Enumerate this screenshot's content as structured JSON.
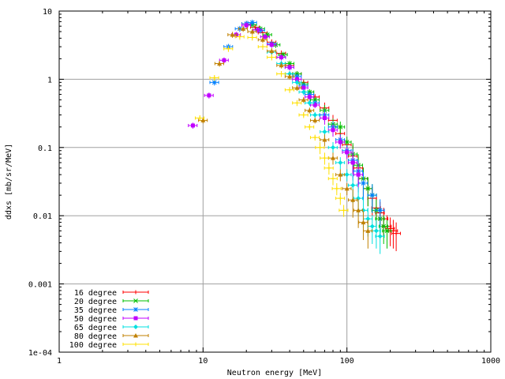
{
  "chart_data": {
    "type": "scatter",
    "xlabel": "Neutron energy [MeV]",
    "ylabel": "ddxs [mb/sr/MeV]",
    "xscale": "log",
    "yscale": "log",
    "xlim": [
      1,
      1000
    ],
    "ylim": [
      0.0001,
      10
    ],
    "xticks": [
      {
        "value": 1,
        "label": "1"
      },
      {
        "value": 10,
        "label": "10"
      },
      {
        "value": 100,
        "label": "100"
      },
      {
        "value": 1000,
        "label": "1000"
      }
    ],
    "yticks": [
      {
        "value": 0.0001,
        "label": "1e-04"
      },
      {
        "value": 0.001,
        "label": "0.001"
      },
      {
        "value": 0.01,
        "label": "0.01"
      },
      {
        "value": 0.1,
        "label": "0.1"
      },
      {
        "value": 1,
        "label": "1"
      },
      {
        "value": 10,
        "label": "10"
      }
    ],
    "grid": true,
    "legend_position": "bottom-left",
    "series": [
      {
        "name": "16 degree",
        "color": "#ff0000",
        "marker": "plus",
        "points": [
          [
            20,
            6.5
          ],
          [
            23,
            5.8
          ],
          [
            26,
            4.8
          ],
          [
            30,
            3.5
          ],
          [
            35,
            2.4
          ],
          [
            40,
            1.6
          ],
          [
            45,
            1.2
          ],
          [
            50,
            0.9
          ],
          [
            60,
            0.55
          ],
          [
            70,
            0.38
          ],
          [
            80,
            0.25
          ],
          [
            90,
            0.16
          ],
          [
            100,
            0.11
          ],
          [
            110,
            0.075
          ],
          [
            120,
            0.05
          ],
          [
            130,
            0.035
          ],
          [
            140,
            0.025
          ],
          [
            150,
            0.018
          ],
          [
            160,
            0.013
          ],
          [
            170,
            0.011
          ],
          [
            180,
            0.009
          ],
          [
            190,
            0.007
          ],
          [
            200,
            0.0065
          ],
          [
            210,
            0.006
          ],
          [
            220,
            0.0055
          ]
        ]
      },
      {
        "name": "20 degree",
        "color": "#00c000",
        "marker": "cross",
        "points": [
          [
            22,
            6.3
          ],
          [
            25,
            5.5
          ],
          [
            28,
            4.5
          ],
          [
            32,
            3.2
          ],
          [
            36,
            2.3
          ],
          [
            40,
            1.7
          ],
          [
            45,
            1.2
          ],
          [
            50,
            0.85
          ],
          [
            55,
            0.65
          ],
          [
            60,
            0.5
          ],
          [
            70,
            0.35
          ],
          [
            80,
            0.22
          ],
          [
            90,
            0.2
          ],
          [
            100,
            0.12
          ],
          [
            110,
            0.08
          ],
          [
            120,
            0.055
          ],
          [
            130,
            0.035
          ],
          [
            140,
            0.025
          ],
          [
            150,
            0.02
          ],
          [
            160,
            0.012
          ],
          [
            170,
            0.009
          ],
          [
            180,
            0.007
          ],
          [
            190,
            0.006
          ]
        ]
      },
      {
        "name": "35 degree",
        "color": "#0080ff",
        "marker": "star",
        "points": [
          [
            12,
            0.9
          ],
          [
            15,
            3.0
          ],
          [
            18,
            5.5
          ],
          [
            20,
            6.5
          ],
          [
            22,
            6.8
          ],
          [
            25,
            5.2
          ],
          [
            30,
            3.3
          ],
          [
            35,
            2.1
          ],
          [
            40,
            1.5
          ],
          [
            45,
            1.1
          ],
          [
            50,
            0.8
          ],
          [
            55,
            0.6
          ],
          [
            60,
            0.45
          ],
          [
            70,
            0.3
          ],
          [
            80,
            0.2
          ],
          [
            90,
            0.13
          ],
          [
            100,
            0.09
          ],
          [
            110,
            0.065
          ],
          [
            120,
            0.045
          ],
          [
            130,
            0.03
          ],
          [
            150,
            0.02
          ],
          [
            170,
            0.012
          ]
        ]
      },
      {
        "name": "50 degree",
        "color": "#c000ff",
        "marker": "square",
        "points": [
          [
            8.5,
            0.21
          ],
          [
            11,
            0.58
          ],
          [
            14,
            1.9
          ],
          [
            17,
            4.5
          ],
          [
            20,
            6.2
          ],
          [
            24,
            5.3
          ],
          [
            27,
            4.2
          ],
          [
            30,
            3.2
          ],
          [
            35,
            2.1
          ],
          [
            40,
            1.5
          ],
          [
            45,
            1.0
          ],
          [
            50,
            0.75
          ],
          [
            55,
            0.55
          ],
          [
            60,
            0.42
          ],
          [
            70,
            0.27
          ],
          [
            80,
            0.18
          ],
          [
            90,
            0.12
          ],
          [
            100,
            0.085
          ],
          [
            110,
            0.06
          ],
          [
            120,
            0.04
          ]
        ]
      },
      {
        "name": "65 degree",
        "color": "#00e0e0",
        "marker": "diamond",
        "points": [
          [
            30,
            2.5
          ],
          [
            35,
            1.7
          ],
          [
            40,
            1.2
          ],
          [
            45,
            0.9
          ],
          [
            50,
            0.65
          ],
          [
            55,
            0.45
          ],
          [
            60,
            0.3
          ],
          [
            70,
            0.17
          ],
          [
            80,
            0.1
          ],
          [
            90,
            0.06
          ],
          [
            100,
            0.04
          ],
          [
            110,
            0.028
          ],
          [
            120,
            0.018
          ],
          [
            130,
            0.012
          ],
          [
            140,
            0.009
          ],
          [
            150,
            0.007
          ],
          [
            160,
            0.006
          ],
          [
            170,
            0.005
          ]
        ]
      },
      {
        "name": "80 degree",
        "color": "#c08000",
        "marker": "triangle",
        "points": [
          [
            10,
            0.25
          ],
          [
            13,
            1.7
          ],
          [
            16,
            4.5
          ],
          [
            19,
            5.5
          ],
          [
            22,
            5.0
          ],
          [
            26,
            3.8
          ],
          [
            30,
            2.6
          ],
          [
            35,
            1.6
          ],
          [
            40,
            1.1
          ],
          [
            45,
            0.75
          ],
          [
            50,
            0.5
          ],
          [
            55,
            0.35
          ],
          [
            60,
            0.25
          ],
          [
            70,
            0.13
          ],
          [
            80,
            0.07
          ],
          [
            90,
            0.04
          ],
          [
            100,
            0.025
          ],
          [
            110,
            0.017
          ],
          [
            120,
            0.012
          ],
          [
            130,
            0.008
          ],
          [
            140,
            0.006
          ]
        ]
      },
      {
        "name": "100 degree",
        "color": "#ffe000",
        "marker": "plus",
        "points": [
          [
            9.5,
            0.27
          ],
          [
            12,
            1.05
          ],
          [
            15,
            2.8
          ],
          [
            18,
            4.2
          ],
          [
            22,
            4.1
          ],
          [
            26,
            3.0
          ],
          [
            30,
            2.1
          ],
          [
            35,
            1.2
          ],
          [
            40,
            0.7
          ],
          [
            45,
            0.45
          ],
          [
            50,
            0.3
          ],
          [
            55,
            0.2
          ],
          [
            60,
            0.14
          ],
          [
            65,
            0.1
          ],
          [
            70,
            0.07
          ],
          [
            75,
            0.05
          ],
          [
            80,
            0.035
          ],
          [
            85,
            0.025
          ],
          [
            90,
            0.018
          ],
          [
            95,
            0.012
          ]
        ]
      }
    ]
  }
}
